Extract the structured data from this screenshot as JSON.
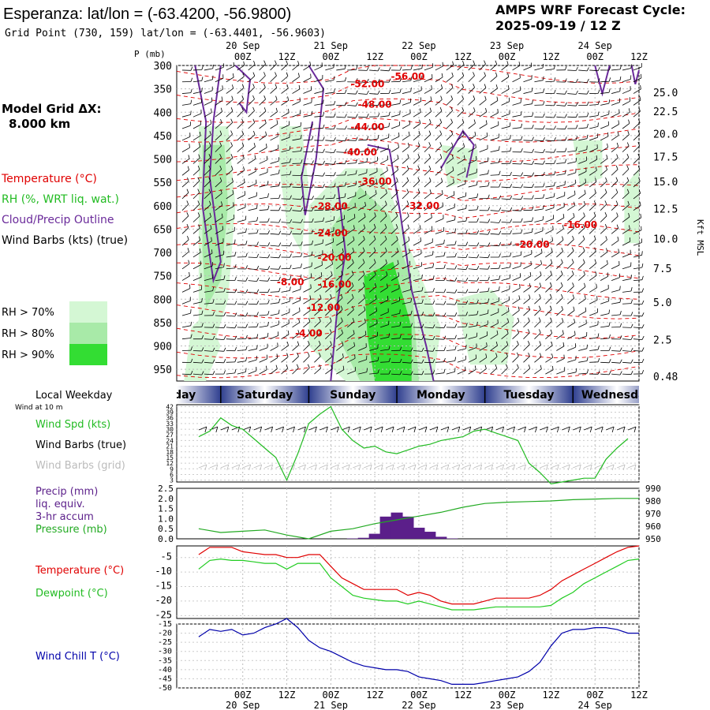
{
  "header": {
    "title": "Esperanza:  lat/lon = (-63.4200, -56.9800)",
    "subtitle": "Grid Point (730, 159) lat/lon = (-63.4401, -56.9603)",
    "cycle_line1": "AMPS WRF Forecast Cycle:",
    "cycle_line2": "2025-09-19 / 12  Z"
  },
  "left_labels": {
    "model_grid_1": "Model Grid ΔX:",
    "model_grid_2": "8.000 km",
    "temperature": "Temperature (°C)",
    "rh": "RH (%, WRT liq. wat.)",
    "cloud": "Cloud/Precip Outline",
    "wind_barbs": "Wind Barbs (kts) (true)",
    "rh70": "RH > 70%",
    "rh80": "RH > 80%",
    "rh90": "RH > 90%",
    "local_weekday": "Local Weekday",
    "wind_at": "Wind at 10 m",
    "wind_spd": "Wind Spd (kts)",
    "wind_barbs_true": "Wind Barbs (true)",
    "wind_barbs_grid": "Wind Barbs (grid)",
    "precip1": "Precip (mm)",
    "precip2": "liq. equiv.",
    "precip3": "3-hr accum",
    "pressure": "Pressure (mb)",
    "temp2": "Temperature (°C)",
    "dewpoint": "Dewpoint (°C)",
    "windchill": "Wind Chill T (°C)"
  },
  "colors": {
    "temperature": "#e00000",
    "rh": "#22bb22",
    "cloud": "#6a2a9a",
    "rh70": "#d4f7d4",
    "rh80": "#a8eaa8",
    "rh90": "#33dd33",
    "precip": "#5b1f8a",
    "windchill": "#0000aa"
  },
  "chart_data": [
    {
      "type": "time-height cross section",
      "ylabel": "P (mb)",
      "ylabel_right": "Kft MSL",
      "time_ticks": [
        "00Z",
        "12Z",
        "00Z",
        "12Z",
        "00Z",
        "12Z",
        "00Z",
        "12Z",
        "00Z",
        "12Z"
      ],
      "time_ticks_hour": [
        12,
        24,
        36,
        48,
        60,
        72,
        84,
        96,
        108,
        120
      ],
      "date_labels": [
        "20 Sep",
        "21 Sep",
        "22 Sep",
        "23 Sep",
        "24 Sep"
      ],
      "date_labels_hour": [
        12,
        36,
        60,
        84,
        108
      ],
      "pressure_ticks": [
        300,
        350,
        400,
        450,
        500,
        550,
        600,
        650,
        700,
        750,
        800,
        850,
        900,
        950
      ],
      "kft_ticks": [
        {
          "p": 357,
          "label": "25.0"
        },
        {
          "p": 398,
          "label": "22.5"
        },
        {
          "p": 446,
          "label": "20.0"
        },
        {
          "p": 495,
          "label": "17.5"
        },
        {
          "p": 548,
          "label": "15.0"
        },
        {
          "p": 606,
          "label": "12.5"
        },
        {
          "p": 670,
          "label": "10.0"
        },
        {
          "p": 734,
          "label": "7.5"
        },
        {
          "p": 806,
          "label": "5.0"
        },
        {
          "p": 886,
          "label": "2.5"
        },
        {
          "p": 965,
          "label": "0.48"
        }
      ],
      "temperature_labels": [
        {
          "hour": 57,
          "p": 330,
          "label": "-56.00"
        },
        {
          "hour": 46,
          "p": 346,
          "label": "-52.00"
        },
        {
          "hour": 48,
          "p": 390,
          "label": "-48.00"
        },
        {
          "hour": 46,
          "p": 438,
          "label": "-44.00"
        },
        {
          "hour": 44,
          "p": 492,
          "label": "-40.00"
        },
        {
          "hour": 48,
          "p": 555,
          "label": "-36.00"
        },
        {
          "hour": 61,
          "p": 607,
          "label": "-32.00"
        },
        {
          "hour": 36,
          "p": 608,
          "label": "-28.00"
        },
        {
          "hour": 36,
          "p": 665,
          "label": "-24.00"
        },
        {
          "hour": 37,
          "p": 718,
          "label": "-20.00"
        },
        {
          "hour": 91,
          "p": 690,
          "label": "-20.00"
        },
        {
          "hour": 104,
          "p": 648,
          "label": "-16.00"
        },
        {
          "hour": 37,
          "p": 775,
          "label": "-16.00"
        },
        {
          "hour": 25,
          "p": 770,
          "label": "-8.00"
        },
        {
          "hour": 34,
          "p": 825,
          "label": "-12.00"
        },
        {
          "hour": 30,
          "p": 880,
          "label": "-4.00"
        }
      ]
    },
    {
      "type": "line",
      "name_panel": "weekday strip",
      "weekdays": [
        "Friday",
        "Saturday",
        "Sunday",
        "Monday",
        "Tuesday",
        "Wednesday"
      ],
      "weekdays_start_hour": [
        -18,
        6,
        30,
        54,
        78,
        102
      ]
    },
    {
      "type": "line",
      "ylabel": "Wind Spd (kts)",
      "yticks": [
        3,
        6,
        9,
        12,
        15,
        18,
        21,
        24,
        27,
        30,
        33,
        36,
        39,
        42
      ],
      "ylim": [
        3,
        42
      ],
      "x_hours": [
        0,
        3,
        6,
        9,
        12,
        15,
        18,
        21,
        24,
        27,
        30,
        33,
        36,
        39,
        42,
        45,
        48,
        51,
        54,
        57,
        60,
        63,
        66,
        69,
        72,
        75,
        78,
        81,
        84,
        87,
        90,
        93,
        96,
        99,
        102,
        105,
        108,
        111,
        114,
        117
      ],
      "values": [
        26,
        29,
        36,
        32,
        30,
        25,
        20,
        15,
        3,
        17,
        33,
        38,
        42,
        30,
        24,
        20,
        21,
        18,
        17,
        19,
        21,
        22,
        24,
        25,
        26,
        29,
        30,
        28,
        26,
        24,
        12,
        7,
        1,
        2,
        3,
        4,
        4,
        14,
        20,
        25
      ]
    },
    {
      "type": "bar+line",
      "ylabel_left": "Precip (mm)",
      "ylabel_right": "(mb)",
      "precip_yticks": [
        0.0,
        0.5,
        1.0,
        1.5,
        2.0,
        2.5
      ],
      "pressure_yticks": [
        950,
        960,
        970,
        980,
        990
      ],
      "precip_x_hours": [
        6,
        9,
        12,
        15,
        18,
        21,
        24,
        27,
        30,
        33,
        36,
        39,
        42,
        45,
        48,
        51,
        54,
        57,
        60,
        63,
        66,
        69,
        72,
        75,
        78,
        81,
        84,
        87,
        90,
        93,
        96,
        99,
        102,
        105,
        108,
        111,
        114,
        117
      ],
      "precip_values": [
        0,
        0,
        0,
        0,
        0,
        0,
        0,
        0,
        0,
        0,
        0,
        0,
        0.02,
        0.05,
        0.25,
        1.1,
        1.3,
        1.1,
        0.55,
        0.35,
        0.1,
        0.02,
        0,
        0,
        0,
        0,
        0,
        0,
        0,
        0,
        0,
        0,
        0,
        0,
        0,
        0,
        0,
        0
      ],
      "pressure_x_hours": [
        0,
        6,
        12,
        18,
        24,
        30,
        36,
        42,
        48,
        54,
        60,
        66,
        72,
        78,
        84,
        90,
        96,
        102,
        108,
        114,
        120
      ],
      "pressure_values": [
        958,
        955,
        956,
        957,
        953,
        950,
        956,
        958,
        962,
        965,
        968,
        971,
        975,
        978,
        979,
        979.5,
        980,
        981,
        981.5,
        982,
        982
      ]
    },
    {
      "type": "line",
      "yticks": [
        -5,
        -10,
        -15,
        -20,
        -25
      ],
      "ylim": [
        -26,
        -1
      ],
      "x_hours": [
        0,
        3,
        6,
        9,
        12,
        15,
        18,
        21,
        24,
        27,
        30,
        33,
        36,
        39,
        42,
        45,
        48,
        51,
        54,
        57,
        60,
        63,
        66,
        69,
        72,
        75,
        78,
        81,
        84,
        87,
        90,
        93,
        96,
        99,
        102,
        105,
        108,
        111,
        114,
        117,
        120
      ],
      "series": [
        {
          "name": "Temperature (°C)",
          "values": [
            -4,
            -1.5,
            -1.5,
            -1.5,
            -3,
            -3.5,
            -4,
            -4,
            -5,
            -5,
            -4,
            -4,
            -8,
            -12,
            -14,
            -16,
            -16,
            -16,
            -16,
            -18,
            -17,
            -18,
            -20,
            -21,
            -21,
            -21,
            -20,
            -19,
            -19,
            -19,
            -19,
            -18,
            -16,
            -13,
            -11,
            -9,
            -7,
            -5,
            -3,
            -1.5,
            -1
          ]
        },
        {
          "name": "Dewpoint (°C)",
          "values": [
            -9,
            -6,
            -5.5,
            -6,
            -6,
            -6.5,
            -7,
            -7,
            -9,
            -7,
            -7,
            -7,
            -12,
            -15,
            -18,
            -19,
            -19.5,
            -20,
            -20,
            -21,
            -20,
            -21,
            -22,
            -23,
            -23,
            -23,
            -22.5,
            -22,
            -22,
            -22,
            -22,
            -22,
            -21.5,
            -19,
            -17,
            -14,
            -12,
            -10,
            -8,
            -6,
            -5.5
          ]
        }
      ]
    },
    {
      "type": "line",
      "ylabel": "Wind Chill T (°C)",
      "yticks": [
        -15,
        -20,
        -25,
        -30,
        -35,
        -40,
        -45,
        -50
      ],
      "ylim": [
        -50,
        -15
      ],
      "x_hours": [
        0,
        3,
        6,
        9,
        12,
        15,
        18,
        21,
        24,
        27,
        30,
        33,
        36,
        39,
        42,
        45,
        48,
        51,
        54,
        57,
        60,
        63,
        66,
        69,
        72,
        75,
        78,
        81,
        84,
        87,
        90,
        93,
        96,
        99,
        102,
        105,
        108,
        111,
        114,
        117,
        120
      ],
      "values": [
        -22,
        -18,
        -19,
        -18,
        -21,
        -20,
        -17,
        -15,
        -12,
        -17,
        -24,
        -28,
        -30,
        -33,
        -36,
        -38,
        -39,
        -40,
        -40,
        -41,
        -44,
        -45,
        -46,
        -48,
        -48,
        -48,
        -47,
        -46,
        -45,
        -44,
        -41,
        -36,
        -27,
        -20,
        -18,
        -18,
        -17,
        -17,
        -18,
        -20,
        -20
      ]
    }
  ]
}
